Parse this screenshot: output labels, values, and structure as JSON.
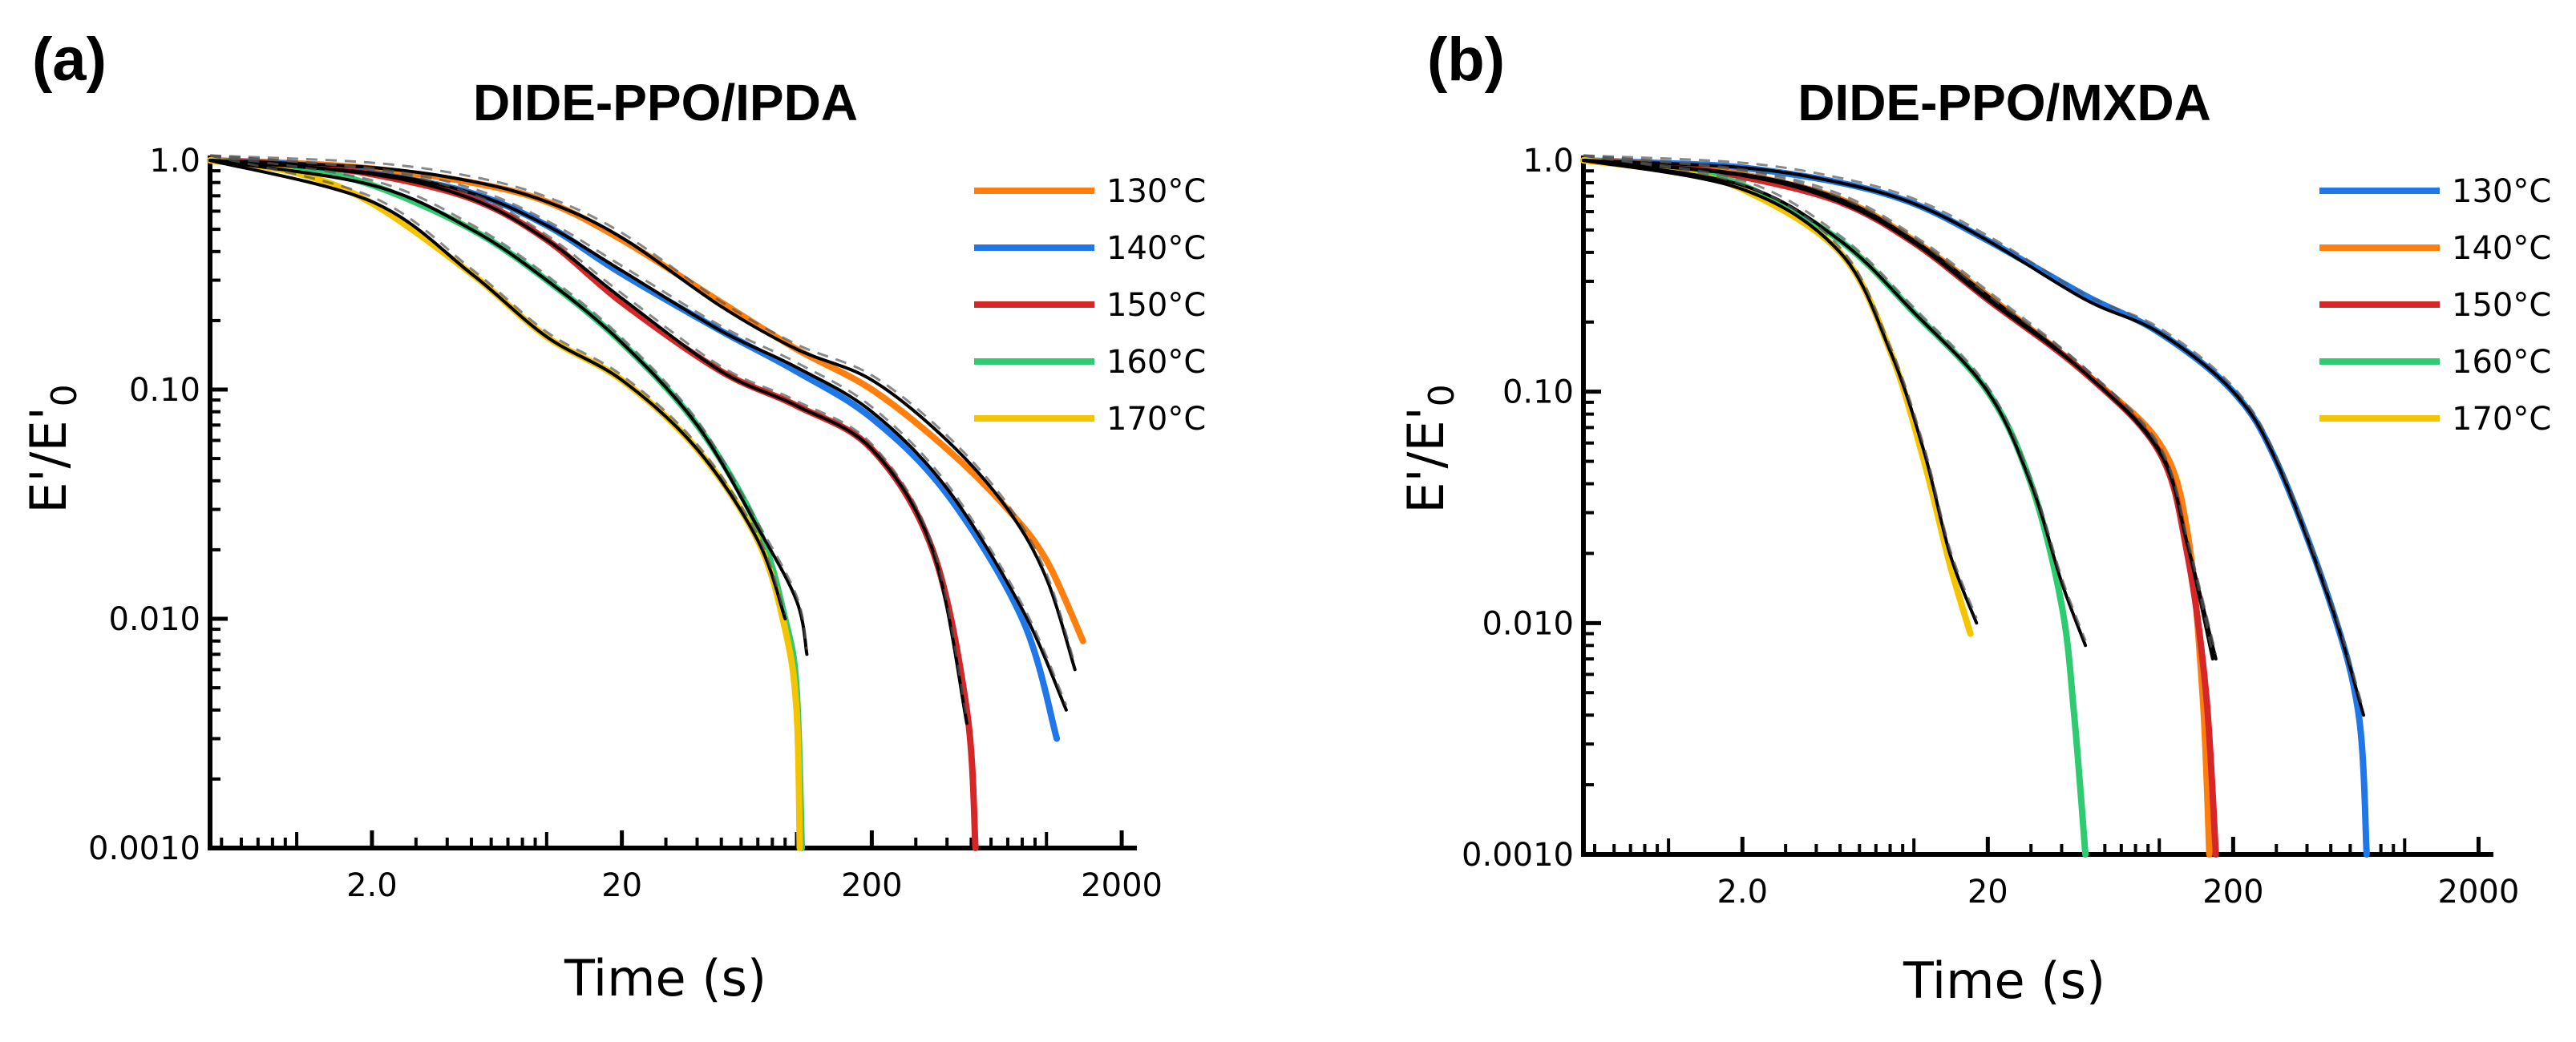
{
  "chart_data": [
    {
      "type": "line",
      "panel_label": "(a)",
      "title": "DIDE-PPO/IPDA",
      "xlabel": "Time (s)",
      "ylabel": "E'/E'",
      "ylabel_sub": "0",
      "x_scale": "log",
      "y_scale": "log",
      "xlim": [
        0.45,
        2300
      ],
      "ylim": [
        0.001,
        1.0
      ],
      "x_ticks": [
        {
          "value": 2,
          "label": "2.0"
        },
        {
          "value": 20,
          "label": "20"
        },
        {
          "value": 200,
          "label": "200"
        },
        {
          "value": 2000,
          "label": "2000"
        }
      ],
      "y_ticks": [
        {
          "value": 1.0,
          "label": "1.0"
        },
        {
          "value": 0.1,
          "label": "0.10"
        },
        {
          "value": 0.01,
          "label": "0.010"
        },
        {
          "value": 0.001,
          "label": "0.0010"
        }
      ],
      "legend_position": "top-right",
      "series": [
        {
          "name": "130°C",
          "color": "#ff7f0e",
          "points": [
            [
              0.45,
              1.0
            ],
            [
              1,
              0.97
            ],
            [
              2,
              0.92
            ],
            [
              5,
              0.8
            ],
            [
              10,
              0.66
            ],
            [
              20,
              0.45
            ],
            [
              50,
              0.24
            ],
            [
              100,
              0.15
            ],
            [
              200,
              0.1
            ],
            [
              400,
              0.055
            ],
            [
              700,
              0.03
            ],
            [
              1000,
              0.018
            ],
            [
              1400,
              0.008
            ]
          ]
        },
        {
          "name": "140°C",
          "color": "#1f77e8",
          "points": [
            [
              0.45,
              1.0
            ],
            [
              1,
              0.96
            ],
            [
              2,
              0.88
            ],
            [
              5,
              0.72
            ],
            [
              10,
              0.52
            ],
            [
              20,
              0.32
            ],
            [
              50,
              0.18
            ],
            [
              100,
              0.12
            ],
            [
              200,
              0.075
            ],
            [
              400,
              0.035
            ],
            [
              800,
              0.01
            ],
            [
              1100,
              0.003
            ]
          ]
        },
        {
          "name": "150°C",
          "color": "#d62728",
          "points": [
            [
              0.45,
              1.0
            ],
            [
              1,
              0.95
            ],
            [
              2,
              0.87
            ],
            [
              5,
              0.68
            ],
            [
              10,
              0.45
            ],
            [
              20,
              0.24
            ],
            [
              50,
              0.12
            ],
            [
              100,
              0.085
            ],
            [
              200,
              0.055
            ],
            [
              350,
              0.02
            ],
            [
              480,
              0.004
            ],
            [
              520,
              0.001
            ]
          ]
        },
        {
          "name": "160°C",
          "color": "#2ecc71",
          "points": [
            [
              0.45,
              1.0
            ],
            [
              1,
              0.92
            ],
            [
              2,
              0.78
            ],
            [
              5,
              0.5
            ],
            [
              10,
              0.3
            ],
            [
              20,
              0.16
            ],
            [
              40,
              0.07
            ],
            [
              70,
              0.025
            ],
            [
              90,
              0.01
            ],
            [
              100,
              0.005
            ],
            [
              105,
              0.001
            ]
          ]
        },
        {
          "name": "170°C",
          "color": "#f5c400",
          "points": [
            [
              0.45,
              1.0
            ],
            [
              1,
              0.88
            ],
            [
              2,
              0.65
            ],
            [
              5,
              0.32
            ],
            [
              10,
              0.17
            ],
            [
              20,
              0.11
            ],
            [
              40,
              0.055
            ],
            [
              70,
              0.022
            ],
            [
              90,
              0.009
            ],
            [
              100,
              0.004
            ],
            [
              103,
              0.001
            ]
          ]
        }
      ],
      "fits": [
        {
          "points": [
            [
              0.45,
              1.0
            ],
            [
              2,
              0.93
            ],
            [
              5,
              0.81
            ],
            [
              10,
              0.66
            ],
            [
              20,
              0.46
            ],
            [
              50,
              0.23
            ],
            [
              100,
              0.15
            ],
            [
              200,
              0.11
            ],
            [
              400,
              0.06
            ],
            [
              700,
              0.03
            ],
            [
              1000,
              0.015
            ],
            [
              1300,
              0.006
            ]
          ]
        },
        {
          "points": [
            [
              0.45,
              1.0
            ],
            [
              2,
              0.88
            ],
            [
              5,
              0.72
            ],
            [
              10,
              0.52
            ],
            [
              20,
              0.33
            ],
            [
              50,
              0.18
            ],
            [
              100,
              0.125
            ],
            [
              200,
              0.08
            ],
            [
              400,
              0.037
            ],
            [
              800,
              0.011
            ],
            [
              1200,
              0.004
            ]
          ]
        },
        {
          "points": [
            [
              0.45,
              1.0
            ],
            [
              2,
              0.87
            ],
            [
              5,
              0.68
            ],
            [
              10,
              0.45
            ],
            [
              20,
              0.25
            ],
            [
              50,
              0.12
            ],
            [
              100,
              0.085
            ],
            [
              200,
              0.055
            ],
            [
              350,
              0.02
            ],
            [
              480,
              0.0035
            ]
          ]
        },
        {
          "points": [
            [
              0.45,
              1.0
            ],
            [
              2,
              0.78
            ],
            [
              5,
              0.5
            ],
            [
              10,
              0.3
            ],
            [
              20,
              0.16
            ],
            [
              40,
              0.07
            ],
            [
              70,
              0.025
            ],
            [
              100,
              0.012
            ],
            [
              110,
              0.007
            ]
          ]
        },
        {
          "points": [
            [
              0.45,
              1.0
            ],
            [
              2,
              0.66
            ],
            [
              5,
              0.32
            ],
            [
              10,
              0.17
            ],
            [
              20,
              0.11
            ],
            [
              40,
              0.055
            ],
            [
              70,
              0.022
            ],
            [
              90,
              0.01
            ]
          ]
        }
      ]
    },
    {
      "type": "line",
      "panel_label": "(b)",
      "title": "DIDE-PPO/MXDA",
      "xlabel": "Time (s)",
      "ylabel": "E'/E'",
      "ylabel_sub": "0",
      "x_scale": "log",
      "y_scale": "log",
      "xlim": [
        0.45,
        2300
      ],
      "ylim": [
        0.001,
        1.0
      ],
      "x_ticks": [
        {
          "value": 2,
          "label": "2.0"
        },
        {
          "value": 20,
          "label": "20"
        },
        {
          "value": 200,
          "label": "200"
        },
        {
          "value": 2000,
          "label": "2000"
        }
      ],
      "y_ticks": [
        {
          "value": 1.0,
          "label": "1.0"
        },
        {
          "value": 0.1,
          "label": "0.10"
        },
        {
          "value": 0.01,
          "label": "0.010"
        },
        {
          "value": 0.001,
          "label": "0.0010"
        }
      ],
      "legend_position": "top-right",
      "series": [
        {
          "name": "130°C",
          "color": "#1f77e8",
          "points": [
            [
              0.45,
              1.0
            ],
            [
              1,
              0.97
            ],
            [
              2,
              0.93
            ],
            [
              5,
              0.8
            ],
            [
              10,
              0.65
            ],
            [
              20,
              0.45
            ],
            [
              50,
              0.26
            ],
            [
              100,
              0.18
            ],
            [
              200,
              0.1
            ],
            [
              300,
              0.05
            ],
            [
              500,
              0.012
            ],
            [
              650,
              0.004
            ],
            [
              700,
              0.001
            ]
          ]
        },
        {
          "name": "140°C",
          "color": "#ff7f0e",
          "points": [
            [
              0.45,
              1.0
            ],
            [
              1,
              0.95
            ],
            [
              2,
              0.87
            ],
            [
              5,
              0.68
            ],
            [
              10,
              0.45
            ],
            [
              20,
              0.26
            ],
            [
              50,
              0.12
            ],
            [
              100,
              0.06
            ],
            [
              130,
              0.025
            ],
            [
              150,
              0.005
            ],
            [
              160,
              0.001
            ]
          ]
        },
        {
          "name": "150°C",
          "color": "#d62728",
          "points": [
            [
              0.45,
              1.0
            ],
            [
              1,
              0.94
            ],
            [
              2,
              0.85
            ],
            [
              5,
              0.66
            ],
            [
              10,
              0.44
            ],
            [
              20,
              0.25
            ],
            [
              50,
              0.12
            ],
            [
              100,
              0.055
            ],
            [
              130,
              0.02
            ],
            [
              155,
              0.005
            ],
            [
              170,
              0.001
            ]
          ]
        },
        {
          "name": "160°C",
          "color": "#2ecc71",
          "points": [
            [
              0.45,
              1.0
            ],
            [
              1,
              0.92
            ],
            [
              2,
              0.78
            ],
            [
              5,
              0.45
            ],
            [
              10,
              0.22
            ],
            [
              20,
              0.1
            ],
            [
              30,
              0.04
            ],
            [
              40,
              0.012
            ],
            [
              45,
              0.004
            ],
            [
              50,
              0.001
            ]
          ]
        },
        {
          "name": "170°C",
          "color": "#f5c400",
          "points": [
            [
              0.45,
              1.0
            ],
            [
              1,
              0.9
            ],
            [
              2,
              0.75
            ],
            [
              5,
              0.4
            ],
            [
              8,
              0.15
            ],
            [
              11,
              0.05
            ],
            [
              14,
              0.018
            ],
            [
              17,
              0.009
            ]
          ]
        }
      ],
      "fits": [
        {
          "points": [
            [
              0.45,
              1.0
            ],
            [
              2,
              0.93
            ],
            [
              5,
              0.8
            ],
            [
              10,
              0.65
            ],
            [
              20,
              0.45
            ],
            [
              50,
              0.25
            ],
            [
              100,
              0.18
            ],
            [
              200,
              0.1
            ],
            [
              300,
              0.05
            ],
            [
              500,
              0.012
            ],
            [
              680,
              0.004
            ]
          ]
        },
        {
          "points": [
            [
              0.45,
              1.0
            ],
            [
              2,
              0.87
            ],
            [
              5,
              0.68
            ],
            [
              10,
              0.45
            ],
            [
              20,
              0.26
            ],
            [
              50,
              0.12
            ],
            [
              100,
              0.056
            ],
            [
              130,
              0.022
            ],
            [
              170,
              0.007
            ]
          ]
        },
        {
          "points": [
            [
              0.45,
              1.0
            ],
            [
              2,
              0.86
            ],
            [
              5,
              0.66
            ],
            [
              10,
              0.44
            ],
            [
              20,
              0.25
            ],
            [
              50,
              0.12
            ],
            [
              100,
              0.055
            ],
            [
              130,
              0.022
            ],
            [
              165,
              0.007
            ]
          ]
        },
        {
          "points": [
            [
              0.45,
              1.0
            ],
            [
              2,
              0.78
            ],
            [
              5,
              0.45
            ],
            [
              10,
              0.22
            ],
            [
              20,
              0.1
            ],
            [
              30,
              0.04
            ],
            [
              40,
              0.015
            ],
            [
              50,
              0.008
            ]
          ]
        },
        {
          "points": [
            [
              0.45,
              1.0
            ],
            [
              2,
              0.75
            ],
            [
              5,
              0.4
            ],
            [
              8,
              0.15
            ],
            [
              11,
              0.055
            ],
            [
              14,
              0.02
            ],
            [
              18,
              0.01
            ]
          ]
        }
      ]
    }
  ]
}
